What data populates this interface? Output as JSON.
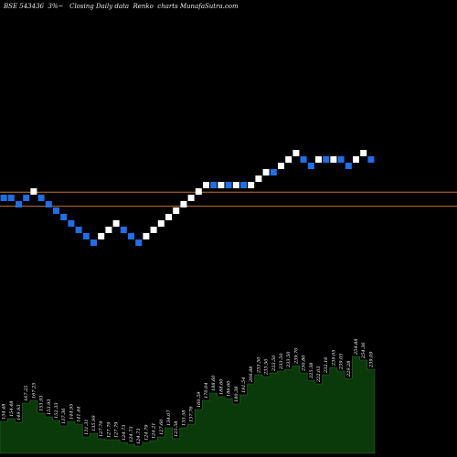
{
  "header": {
    "title": "BSE 543436  3%~   Closing Daily data  Renko  charts MunafaSutra.com"
  },
  "colors": {
    "background": "#000000",
    "brick_up": "#ffffff",
    "brick_down": "#1f6fe8",
    "reference_line": "#c8741e",
    "volume_fill": "#0a3a0a",
    "volume_stroke": "#2b6a2b"
  },
  "chart_data": {
    "type": "renko",
    "reference_lines": [
      {
        "value": 168.5
      },
      {
        "value": 163.0
      }
    ],
    "bricks": [
      {
        "top": 167.5,
        "bottom": 165.0,
        "direction": "down"
      },
      {
        "top": 167.5,
        "bottom": 165.0,
        "direction": "down"
      },
      {
        "top": 165.0,
        "bottom": 162.5,
        "direction": "down"
      },
      {
        "top": 167.5,
        "bottom": 165.0,
        "direction": "down"
      },
      {
        "top": 170.0,
        "bottom": 167.5,
        "direction": "up"
      },
      {
        "top": 167.5,
        "bottom": 165.0,
        "direction": "down"
      },
      {
        "top": 165.0,
        "bottom": 162.5,
        "direction": "down"
      },
      {
        "top": 162.5,
        "bottom": 160.0,
        "direction": "down"
      },
      {
        "top": 160.0,
        "bottom": 157.5,
        "direction": "down"
      },
      {
        "top": 157.5,
        "bottom": 155.0,
        "direction": "down"
      },
      {
        "top": 155.0,
        "bottom": 152.5,
        "direction": "down"
      },
      {
        "top": 152.5,
        "bottom": 150.0,
        "direction": "down"
      },
      {
        "top": 150.0,
        "bottom": 147.5,
        "direction": "down"
      },
      {
        "top": 152.5,
        "bottom": 150.0,
        "direction": "up"
      },
      {
        "top": 155.0,
        "bottom": 152.5,
        "direction": "up"
      },
      {
        "top": 157.5,
        "bottom": 155.0,
        "direction": "up"
      },
      {
        "top": 155.0,
        "bottom": 152.5,
        "direction": "down"
      },
      {
        "top": 152.5,
        "bottom": 150.0,
        "direction": "down"
      },
      {
        "top": 150.0,
        "bottom": 147.5,
        "direction": "down"
      },
      {
        "top": 152.5,
        "bottom": 150.0,
        "direction": "up"
      },
      {
        "top": 155.0,
        "bottom": 152.5,
        "direction": "up"
      },
      {
        "top": 157.5,
        "bottom": 155.0,
        "direction": "up"
      },
      {
        "top": 160.0,
        "bottom": 157.5,
        "direction": "up"
      },
      {
        "top": 162.5,
        "bottom": 160.0,
        "direction": "up"
      },
      {
        "top": 165.0,
        "bottom": 162.5,
        "direction": "up"
      },
      {
        "top": 167.5,
        "bottom": 165.0,
        "direction": "up"
      },
      {
        "top": 170.0,
        "bottom": 167.5,
        "direction": "up"
      },
      {
        "top": 172.5,
        "bottom": 170.0,
        "direction": "up"
      },
      {
        "top": 172.5,
        "bottom": 170.0,
        "direction": "down"
      },
      {
        "top": 172.5,
        "bottom": 170.0,
        "direction": "up"
      },
      {
        "top": 172.5,
        "bottom": 170.0,
        "direction": "down"
      },
      {
        "top": 172.5,
        "bottom": 170.0,
        "direction": "up"
      },
      {
        "top": 172.5,
        "bottom": 170.0,
        "direction": "down"
      },
      {
        "top": 172.5,
        "bottom": 170.0,
        "direction": "up"
      },
      {
        "top": 175.0,
        "bottom": 172.5,
        "direction": "up"
      },
      {
        "top": 177.5,
        "bottom": 175.0,
        "direction": "up"
      },
      {
        "top": 177.5,
        "bottom": 175.0,
        "direction": "down"
      },
      {
        "top": 180.0,
        "bottom": 177.5,
        "direction": "up"
      },
      {
        "top": 182.5,
        "bottom": 180.0,
        "direction": "up"
      },
      {
        "top": 185.0,
        "bottom": 182.5,
        "direction": "up"
      },
      {
        "top": 182.5,
        "bottom": 180.0,
        "direction": "down"
      },
      {
        "top": 180.0,
        "bottom": 177.5,
        "direction": "down"
      },
      {
        "top": 182.5,
        "bottom": 180.0,
        "direction": "up"
      },
      {
        "top": 182.5,
        "bottom": 180.0,
        "direction": "down"
      },
      {
        "top": 182.5,
        "bottom": 180.0,
        "direction": "up"
      },
      {
        "top": 182.5,
        "bottom": 180.0,
        "direction": "down"
      },
      {
        "top": 180.0,
        "bottom": 177.5,
        "direction": "down"
      },
      {
        "top": 182.5,
        "bottom": 180.0,
        "direction": "up"
      },
      {
        "top": 185.0,
        "bottom": 182.5,
        "direction": "up"
      },
      {
        "top": 182.5,
        "bottom": 180.0,
        "direction": "down"
      }
    ],
    "volume": {
      "labels": [
        "154.48",
        "154.48",
        "149.93",
        "167.25",
        "167.25",
        "153.93",
        "153.93",
        "152.33",
        "137.36",
        "144.95",
        "141.44",
        "131.31",
        "135.99",
        "127.79",
        "127.79",
        "127.79",
        "124.73",
        "124.73",
        "124.73",
        "124.79",
        "124.21",
        "127.60",
        "134.07",
        "125.58",
        "135.58",
        "137.76",
        "160.59",
        "170.04",
        "188.60",
        "188.60",
        "186.60",
        "180.38",
        "191.54",
        "206.88",
        "233.50",
        "233.50",
        "233.50",
        "233.50",
        "233.50",
        "239.70",
        "230.80",
        "225.38",
        "222.03",
        "232.16",
        "239.05",
        "239.05",
        "229.28",
        "254.88",
        "254.36",
        "239.09"
      ],
      "values": [
        35,
        38,
        34,
        55,
        58,
        44,
        40,
        36,
        30,
        35,
        32,
        18,
        22,
        16,
        15,
        15,
        12,
        10,
        8,
        12,
        14,
        18,
        28,
        16,
        28,
        32,
        48,
        58,
        66,
        62,
        60,
        54,
        64,
        76,
        86,
        84,
        88,
        90,
        92,
        96,
        88,
        80,
        76,
        86,
        94,
        90,
        82,
        106,
        102,
        92
      ]
    }
  }
}
